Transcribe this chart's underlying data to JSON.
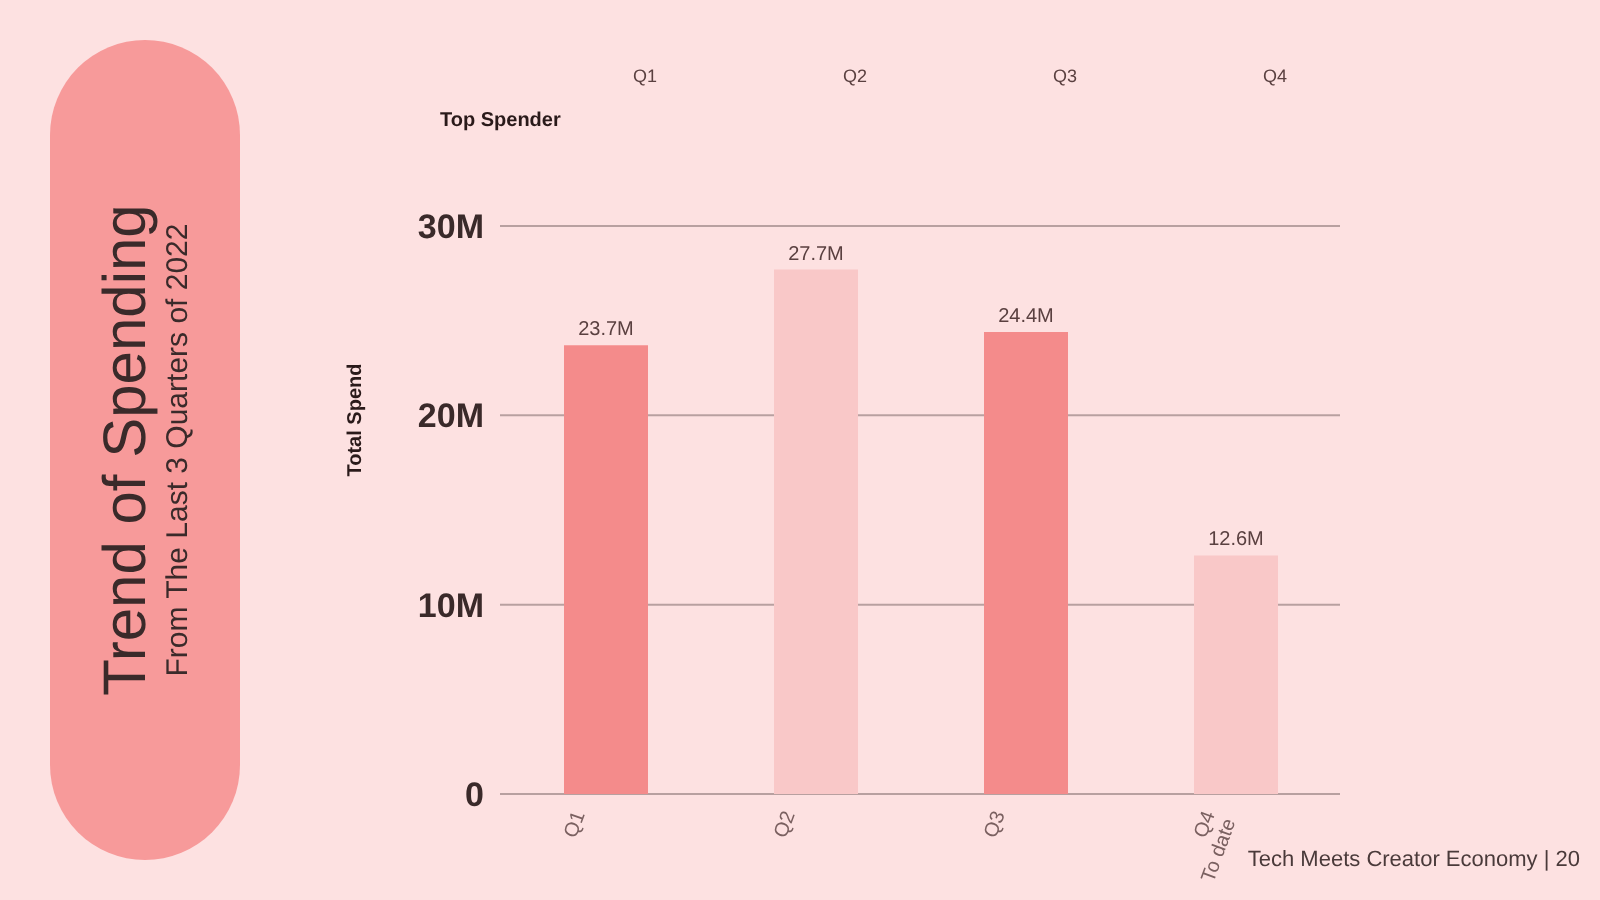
{
  "chart_data": {
    "type": "bar",
    "title": "Trend of Spending",
    "subtitle": "From The Last 3 Quarters of 2022",
    "ylabel": "Total Spend",
    "categories": [
      "Q1",
      "Q2",
      "Q3",
      "Q4\nTo date"
    ],
    "values": [
      23.7,
      27.7,
      24.4,
      12.6
    ],
    "colors": [
      "#f48b8b",
      "#f9c8c8",
      "#f48b8b",
      "#f9c8c8"
    ],
    "value_labels": [
      "23.7M",
      "27.7M",
      "24.4M",
      "12.6M"
    ],
    "ylim": [
      0,
      30
    ],
    "yticks": [
      0,
      {
        "value": 10,
        "label": "10M"
      },
      {
        "value": 20,
        "label": "20M"
      },
      {
        "value": 30,
        "label": "30M"
      }
    ],
    "grid": "y",
    "annotations": [
      "Top Spender",
      "Q1",
      "Q2",
      "Q3",
      "Q4",
      "Tech Meets Creator Economy | 20"
    ]
  }
}
